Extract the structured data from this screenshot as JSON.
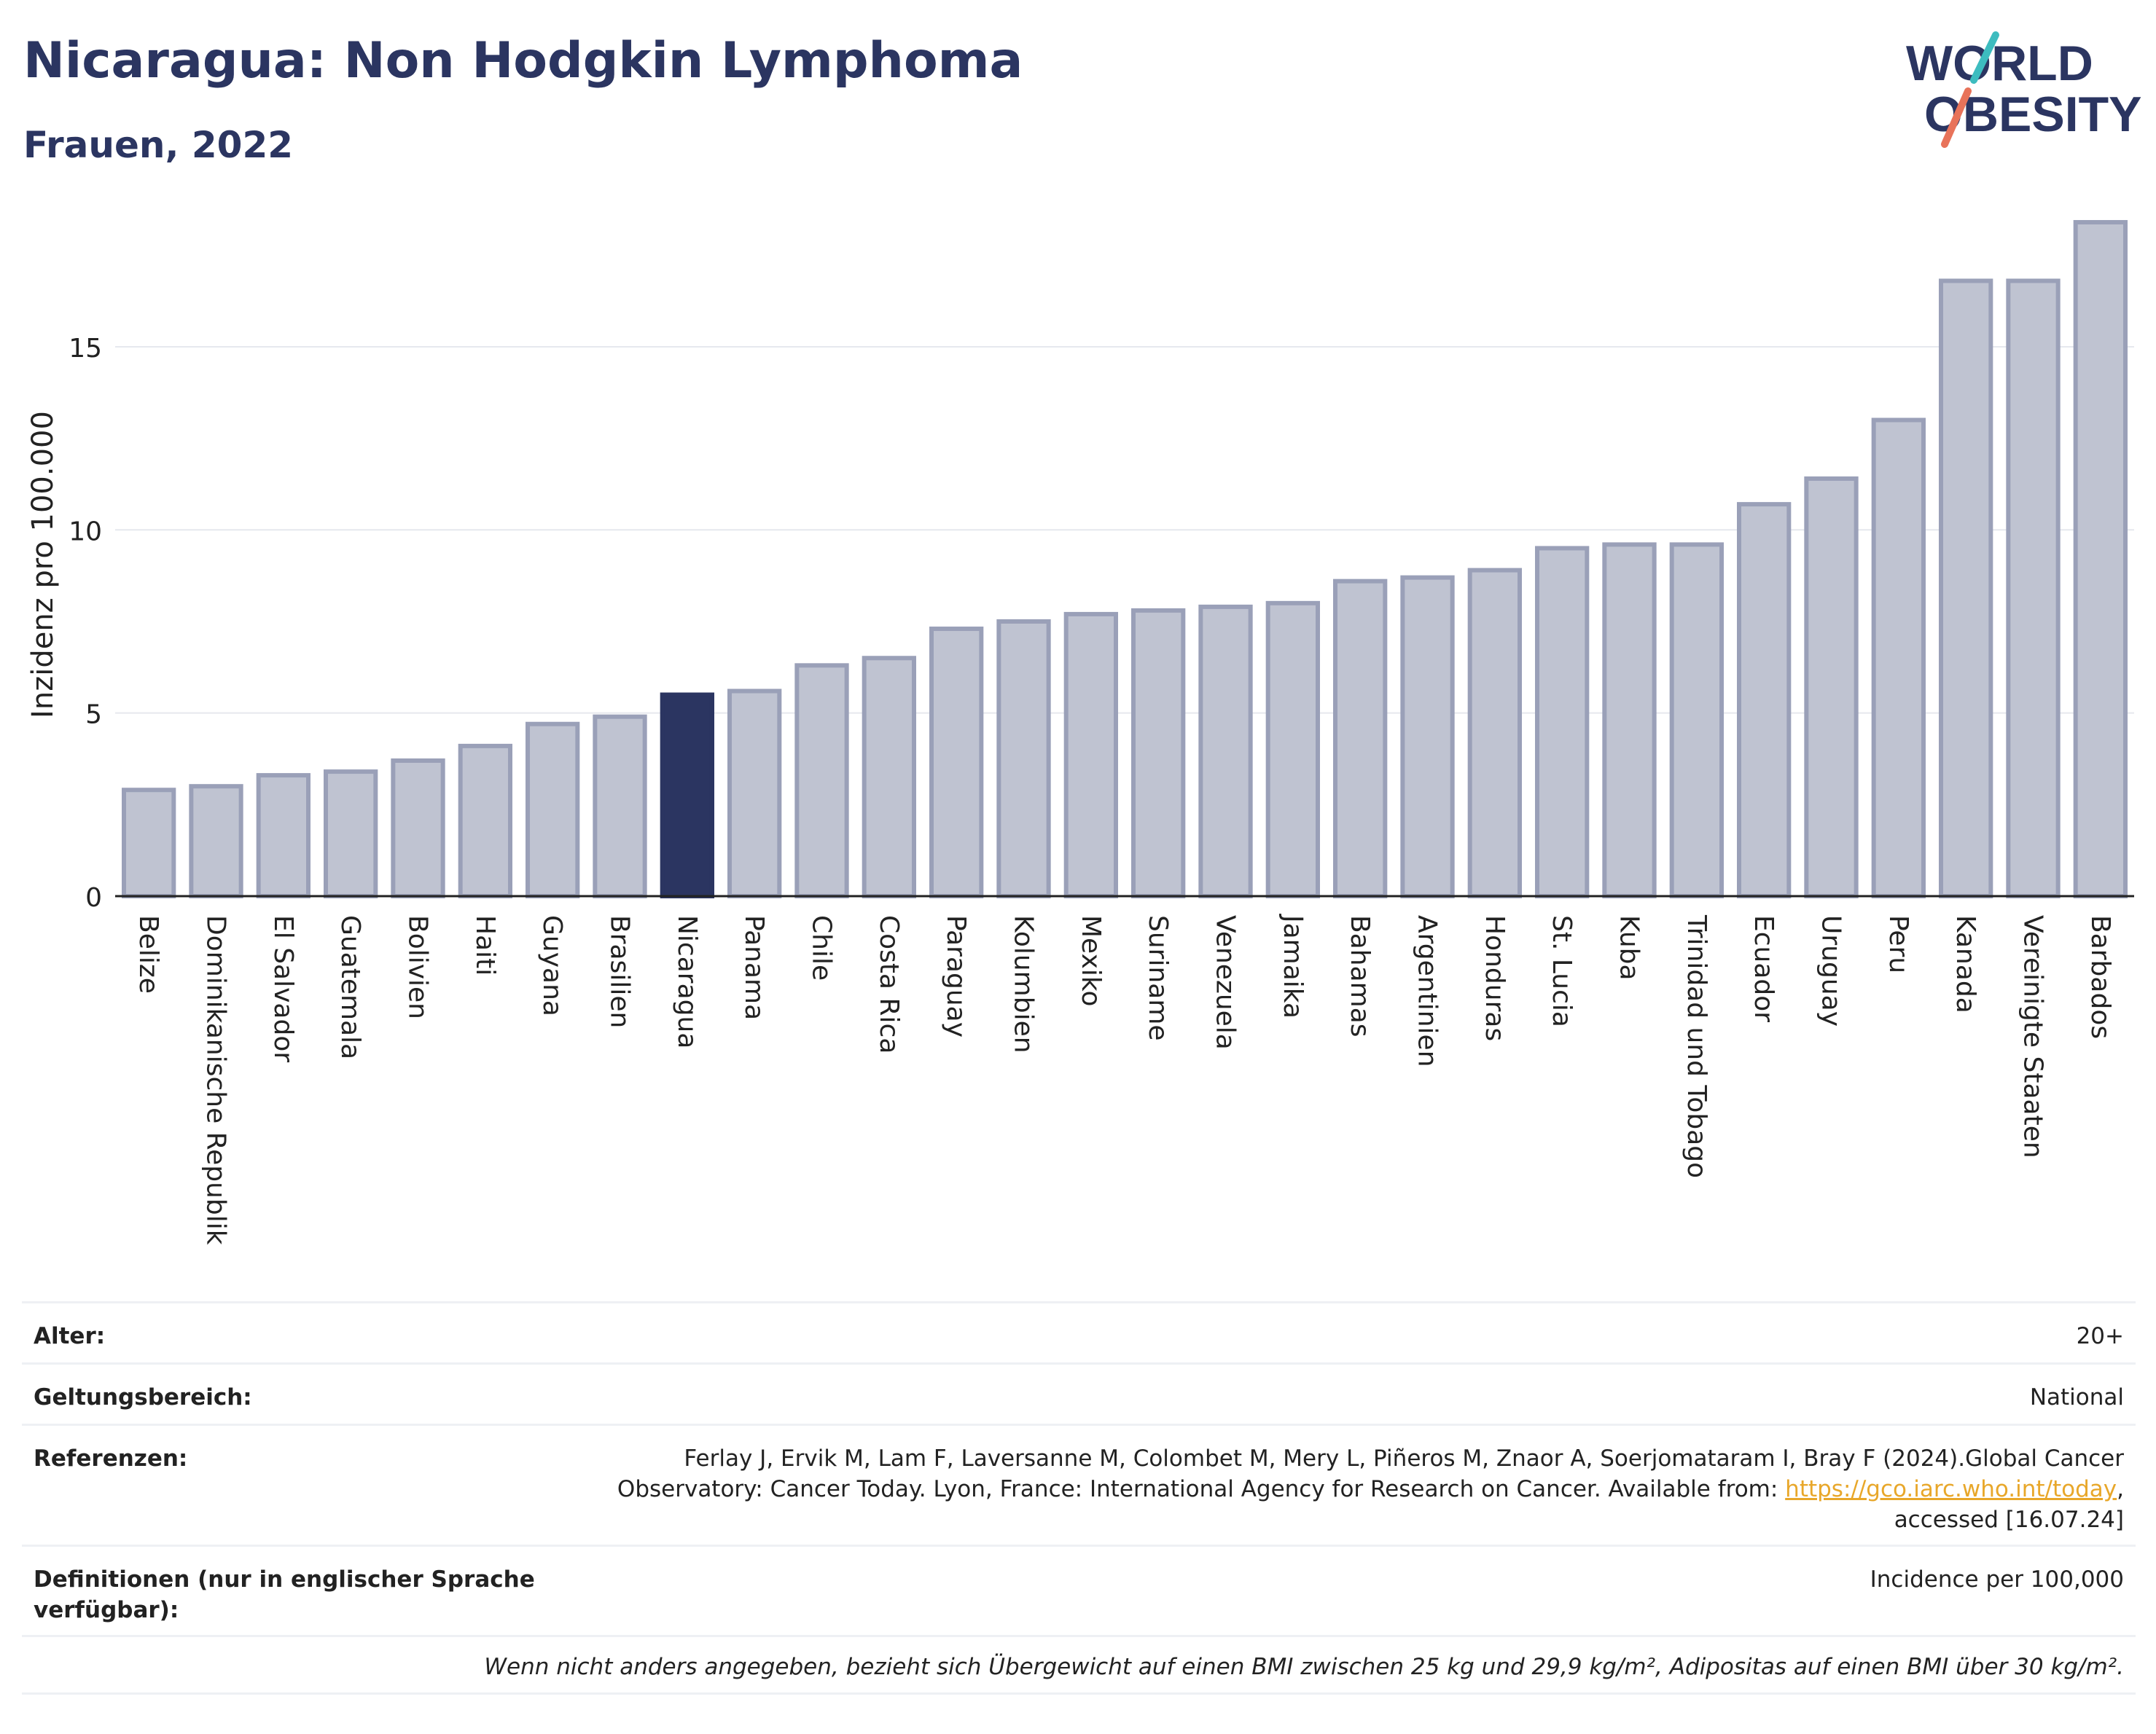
{
  "header": {
    "title": "Nicaragua: Non Hodgkin Lymphoma",
    "subtitle": "Frauen, 2022"
  },
  "logo": {
    "line1": "WORLD",
    "line2": "OBESITY"
  },
  "colors": {
    "bar": "#bfc3d1",
    "bar_stroke": "#9aa0b8",
    "highlight": "#2b3561",
    "title": "#2b3561",
    "grid": "#e6e8ee",
    "logo_teal": "#3dbcbf",
    "logo_coral": "#e8735a"
  },
  "chart_data": {
    "type": "bar",
    "title": "",
    "xlabel": "",
    "ylabel": "Inzidenz pro 100.000",
    "ylim": [
      0,
      18.5
    ],
    "yticks": [
      0,
      5,
      10,
      15
    ],
    "grid": true,
    "highlight": "Nicaragua",
    "categories": [
      "Belize",
      "Dominikanische Republik",
      "El Salvador",
      "Guatemala",
      "Bolivien",
      "Haiti",
      "Guyana",
      "Brasilien",
      "Nicaragua",
      "Panama",
      "Chile",
      "Costa Rica",
      "Paraguay",
      "Kolumbien",
      "Mexiko",
      "Suriname",
      "Venezuela",
      "Jamaika",
      "Bahamas",
      "Argentinien",
      "Honduras",
      "St. Lucia",
      "Kuba",
      "Trinidad und Tobago",
      "Ecuador",
      "Uruguay",
      "Peru",
      "Kanada",
      "Vereinigte Staaten",
      "Barbados"
    ],
    "values": [
      2.9,
      3.0,
      3.3,
      3.4,
      3.7,
      4.1,
      4.7,
      4.9,
      5.5,
      5.6,
      6.3,
      6.5,
      7.3,
      7.5,
      7.7,
      7.8,
      7.9,
      8.0,
      8.6,
      8.7,
      8.9,
      9.5,
      9.6,
      9.6,
      10.7,
      11.4,
      13.0,
      16.8,
      16.8,
      18.4
    ]
  },
  "meta": {
    "rows": [
      {
        "label": "Alter:",
        "value": "20+"
      },
      {
        "label": "Geltungsbereich:",
        "value": "National"
      },
      {
        "label": "Referenzen:",
        "value_lines": [
          "Ferlay J, Ervik M, Lam F, Laversanne M, Colombet M, Mery L, Piñeros M, Znaor A, Soerjomataram I, Bray F (2024).Global Cancer",
          "Observatory: Cancer Today. Lyon, France: International Agency for Research on Cancer. Available from: ",
          "https://gco.iarc.who.int/today",
          ",",
          "accessed [16.07.24]"
        ]
      },
      {
        "label": "Definitionen (nur in englischer Sprache verfügbar):",
        "value": "Incidence per 100,000"
      }
    ],
    "note": "Wenn nicht anders angegeben, bezieht sich Übergewicht auf einen BMI zwischen 25 kg und 29,9 kg/m², Adipositas auf einen BMI über 30 kg/m²."
  }
}
